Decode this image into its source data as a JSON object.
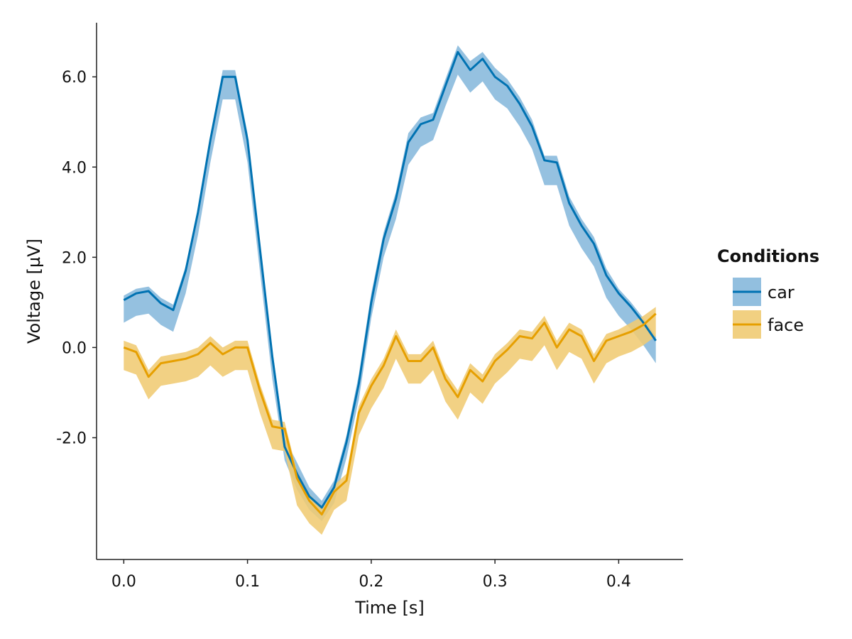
{
  "chart_data": {
    "type": "line",
    "xlabel": "Time [s]",
    "ylabel": "Voltage [µV]",
    "xlim": [
      -0.022,
      0.452
    ],
    "ylim": [
      -4.7,
      7.2
    ],
    "xticks": [
      0.0,
      0.1,
      0.2,
      0.3,
      0.4
    ],
    "xtick_labels": [
      "0.0",
      "0.1",
      "0.2",
      "0.3",
      "0.4"
    ],
    "yticks": [
      -2.0,
      0.0,
      2.0,
      4.0,
      6.0
    ],
    "ytick_labels": [
      "-2.0",
      "0.0",
      "2.0",
      "4.0",
      "6.0"
    ],
    "grid": false,
    "legend": {
      "title": "Conditions",
      "position": "right"
    },
    "x": [
      0.0,
      0.01,
      0.02,
      0.03,
      0.04,
      0.05,
      0.06,
      0.07,
      0.08,
      0.09,
      0.1,
      0.11,
      0.12,
      0.13,
      0.14,
      0.15,
      0.16,
      0.17,
      0.18,
      0.19,
      0.2,
      0.21,
      0.22,
      0.23,
      0.24,
      0.25,
      0.26,
      0.27,
      0.28,
      0.29,
      0.3,
      0.31,
      0.32,
      0.33,
      0.34,
      0.35,
      0.36,
      0.37,
      0.38,
      0.39,
      0.4,
      0.41,
      0.42,
      0.43
    ],
    "series": [
      {
        "name": "car",
        "color": "#0072B2",
        "band_color": "#86B8DC",
        "values": [
          1.05,
          1.2,
          1.25,
          0.98,
          0.83,
          1.7,
          3.0,
          4.6,
          6.0,
          6.0,
          4.6,
          2.2,
          -0.2,
          -2.2,
          -2.8,
          -3.3,
          -3.55,
          -3.1,
          -2.1,
          -0.8,
          1.0,
          2.4,
          3.3,
          4.55,
          4.95,
          5.05,
          5.8,
          6.55,
          6.15,
          6.4,
          6.0,
          5.8,
          5.4,
          4.9,
          4.15,
          4.1,
          3.2,
          2.7,
          2.3,
          1.6,
          1.2,
          0.9,
          0.55,
          0.15
        ],
        "lower": [
          0.55,
          0.7,
          0.75,
          0.5,
          0.35,
          1.2,
          2.5,
          4.1,
          5.5,
          5.5,
          4.1,
          1.7,
          -0.7,
          -2.5,
          -3.15,
          -3.6,
          -3.85,
          -3.45,
          -2.45,
          -1.15,
          0.65,
          2.0,
          2.85,
          4.05,
          4.45,
          4.6,
          5.35,
          6.05,
          5.65,
          5.9,
          5.5,
          5.3,
          4.9,
          4.4,
          3.6,
          3.6,
          2.7,
          2.2,
          1.8,
          1.1,
          0.7,
          0.4,
          0.05,
          -0.35
        ],
        "upper": [
          1.15,
          1.3,
          1.35,
          1.1,
          0.95,
          1.8,
          3.1,
          4.7,
          6.15,
          6.15,
          4.75,
          2.35,
          -0.05,
          -2.0,
          -2.55,
          -3.1,
          -3.4,
          -2.95,
          -1.95,
          -0.6,
          1.2,
          2.55,
          3.45,
          4.75,
          5.1,
          5.2,
          5.95,
          6.7,
          6.35,
          6.55,
          6.2,
          5.95,
          5.55,
          5.05,
          4.25,
          4.25,
          3.35,
          2.85,
          2.45,
          1.75,
          1.3,
          1.0,
          0.65,
          0.25
        ]
      },
      {
        "name": "face",
        "color": "#E69F00",
        "band_color": "#F0CB73",
        "values": [
          0.0,
          -0.1,
          -0.65,
          -0.35,
          -0.3,
          -0.25,
          -0.15,
          0.1,
          -0.15,
          0.0,
          0.0,
          -0.95,
          -1.75,
          -1.8,
          -2.9,
          -3.4,
          -3.7,
          -3.2,
          -2.95,
          -1.45,
          -0.85,
          -0.4,
          0.25,
          -0.3,
          -0.3,
          0.0,
          -0.7,
          -1.1,
          -0.5,
          -0.75,
          -0.3,
          -0.05,
          0.25,
          0.2,
          0.55,
          0.0,
          0.4,
          0.25,
          -0.3,
          0.15,
          0.25,
          0.35,
          0.5,
          0.75
        ],
        "lower": [
          -0.5,
          -0.6,
          -1.15,
          -0.85,
          -0.8,
          -0.75,
          -0.65,
          -0.4,
          -0.65,
          -0.5,
          -0.5,
          -1.45,
          -2.25,
          -2.3,
          -3.5,
          -3.9,
          -4.15,
          -3.6,
          -3.4,
          -1.95,
          -1.35,
          -0.9,
          -0.25,
          -0.8,
          -0.8,
          -0.5,
          -1.2,
          -1.6,
          -1.0,
          -1.25,
          -0.8,
          -0.55,
          -0.25,
          -0.3,
          0.05,
          -0.5,
          -0.1,
          -0.25,
          -0.8,
          -0.35,
          -0.2,
          -0.1,
          0.05,
          0.25
        ],
        "upper": [
          0.15,
          0.05,
          -0.5,
          -0.2,
          -0.15,
          -0.1,
          0.0,
          0.25,
          0.0,
          0.15,
          0.15,
          -0.8,
          -1.6,
          -1.65,
          -2.75,
          -3.25,
          -3.55,
          -3.05,
          -2.8,
          -1.3,
          -0.7,
          -0.25,
          0.4,
          -0.15,
          -0.15,
          0.15,
          -0.55,
          -0.95,
          -0.35,
          -0.6,
          -0.15,
          0.1,
          0.4,
          0.35,
          0.7,
          0.15,
          0.55,
          0.4,
          -0.15,
          0.3,
          0.4,
          0.55,
          0.7,
          0.9
        ]
      }
    ]
  }
}
